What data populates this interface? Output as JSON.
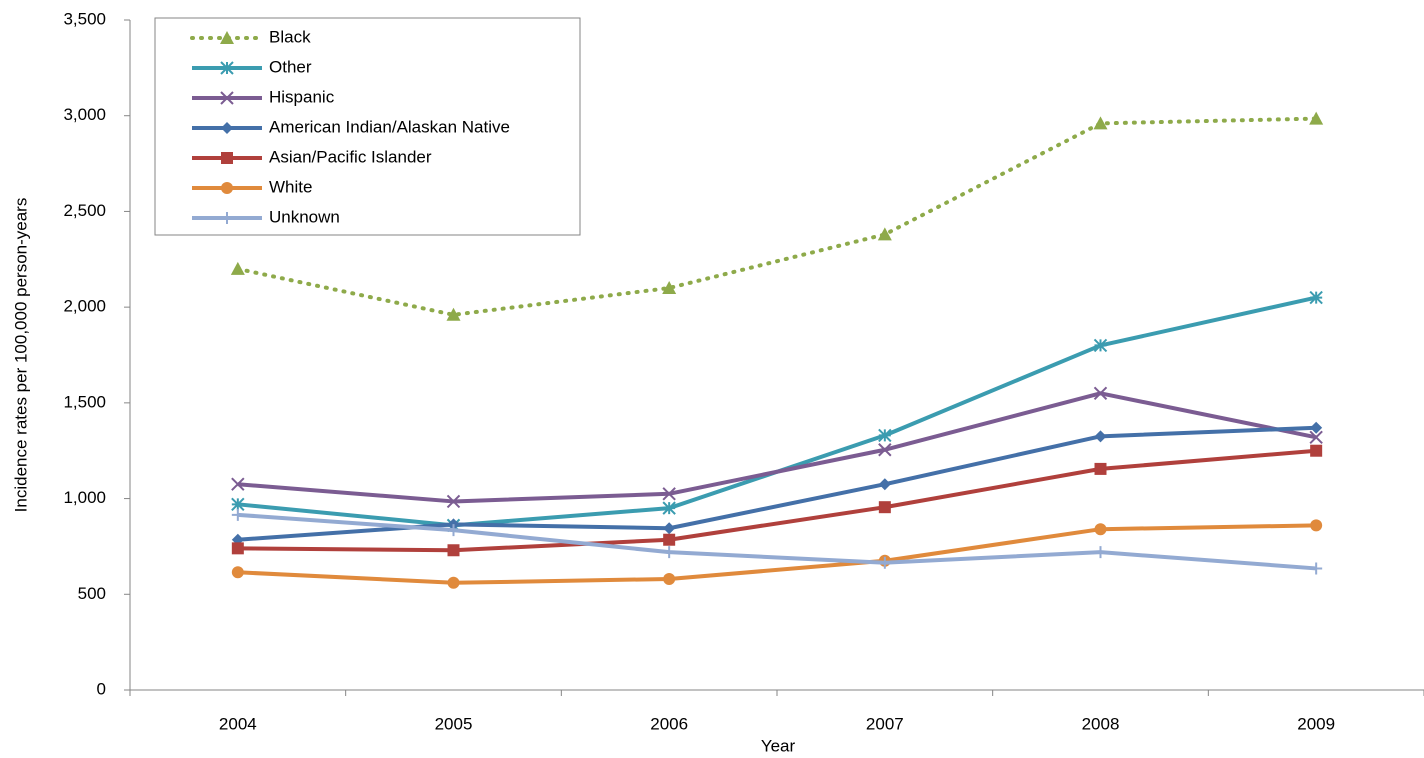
{
  "chart_data": {
    "type": "line",
    "x_label": "Year",
    "y_label": "Incidence rates per 100,000 person-years",
    "categories": [
      "2004",
      "2005",
      "2006",
      "2007",
      "2008",
      "2009"
    ],
    "series": [
      {
        "name": "Black",
        "color": "#8eaa4a",
        "marker": "triangle",
        "dashed": true,
        "values": [
          2200,
          1960,
          2100,
          2380,
          2960,
          2985
        ]
      },
      {
        "name": "Other",
        "color": "#3b9cb0",
        "marker": "star",
        "dashed": false,
        "values": [
          970,
          860,
          950,
          1330,
          1800,
          2050
        ]
      },
      {
        "name": "Hispanic",
        "color": "#7b5c92",
        "marker": "x",
        "dashed": false,
        "values": [
          1075,
          985,
          1025,
          1255,
          1550,
          1320
        ]
      },
      {
        "name": "American Indian/Alaskan Native",
        "color": "#4470a8",
        "marker": "diamond",
        "dashed": false,
        "values": [
          785,
          865,
          845,
          1075,
          1325,
          1370
        ]
      },
      {
        "name": "Asian/Pacific Islander",
        "color": "#b0403c",
        "marker": "square",
        "dashed": false,
        "values": [
          740,
          730,
          785,
          955,
          1155,
          1250
        ]
      },
      {
        "name": "White",
        "color": "#e08a3c",
        "marker": "circle",
        "dashed": false,
        "values": [
          615,
          560,
          580,
          675,
          840,
          860
        ]
      },
      {
        "name": "Unknown",
        "color": "#93aad2",
        "marker": "plus",
        "dashed": false,
        "values": [
          915,
          835,
          720,
          665,
          720,
          635
        ]
      }
    ],
    "ylim": [
      0,
      3500
    ],
    "yticks": [
      0,
      500,
      {
        "value": 1000,
        "label": "1,000"
      },
      {
        "value": 1500,
        "label": "1,500"
      },
      {
        "value": 2000,
        "label": "2,000"
      },
      {
        "value": 2500,
        "label": "2,500"
      },
      {
        "value": 3000,
        "label": "3,000"
      },
      {
        "value": 3500,
        "label": "3,500"
      }
    ],
    "grid": false,
    "legend": "top-left"
  }
}
